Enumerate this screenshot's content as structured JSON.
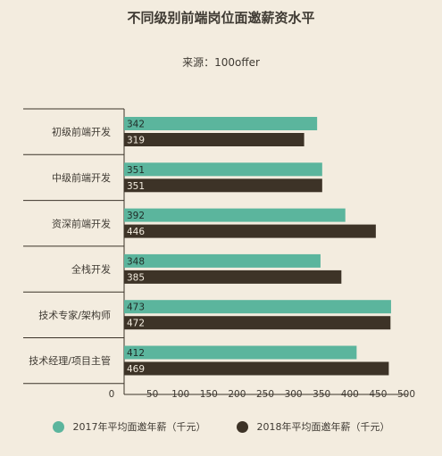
{
  "chart_data": {
    "type": "bar",
    "orientation": "horizontal",
    "title": "不同级别前端岗位面邀薪资水平",
    "subtitle": "来源：100offer",
    "categories": [
      "初级前端开发",
      "中级前端开发",
      "资深前端开发",
      "全栈开发",
      "技术专家/架构师",
      "技术经理/项目主管"
    ],
    "series": [
      {
        "name": "2017年平均面邀年薪（千元）",
        "values": [
          342,
          351,
          392,
          348,
          473,
          412
        ],
        "color": "#5bb59d"
      },
      {
        "name": "2018年平均面邀年薪（千元）",
        "values": [
          319,
          351,
          446,
          385,
          472,
          469
        ],
        "color": "#3d3327"
      }
    ],
    "xlim": [
      0,
      500
    ],
    "xticks": [
      "0",
      "50",
      "100",
      "150",
      "200",
      "250",
      "300",
      "350",
      "400",
      "450",
      "500"
    ],
    "grid": false,
    "legend_position": "bottom"
  }
}
